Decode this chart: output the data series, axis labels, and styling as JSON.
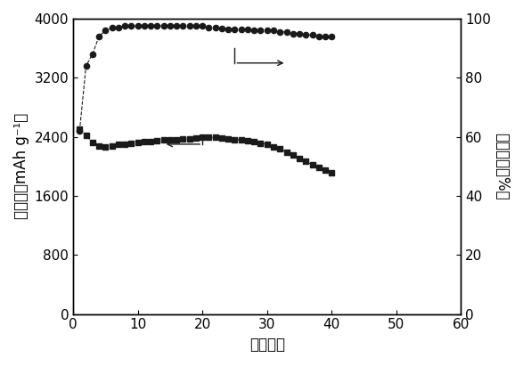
{
  "xlabel": "循环次数",
  "ylabel_left": "比容量（mAh g⁻¹）",
  "ylabel_right": "库伦效率（%）",
  "xlim": [
    0,
    60
  ],
  "ylim_left": [
    0,
    4000
  ],
  "ylim_right": [
    0,
    100
  ],
  "xticks": [
    0,
    10,
    20,
    30,
    40,
    50,
    60
  ],
  "yticks_left": [
    0,
    800,
    1600,
    2400,
    3200,
    4000
  ],
  "yticks_right": [
    0,
    20,
    40,
    60,
    80,
    100
  ],
  "capacity_x": [
    1,
    2,
    3,
    4,
    5,
    6,
    7,
    8,
    9,
    10,
    11,
    12,
    13,
    14,
    15,
    16,
    17,
    18,
    19,
    20,
    21,
    22,
    23,
    24,
    25,
    26,
    27,
    28,
    29,
    30,
    31,
    32,
    33,
    34,
    35,
    36,
    37,
    38,
    39,
    40
  ],
  "capacity_y": [
    2500,
    2420,
    2320,
    2280,
    2265,
    2280,
    2295,
    2305,
    2315,
    2325,
    2330,
    2340,
    2345,
    2355,
    2360,
    2365,
    2370,
    2375,
    2385,
    2400,
    2395,
    2390,
    2385,
    2375,
    2365,
    2355,
    2345,
    2330,
    2315,
    2295,
    2265,
    2235,
    2195,
    2160,
    2110,
    2065,
    2020,
    1985,
    1945,
    1910
  ],
  "efficiency_x": [
    1,
    2,
    3,
    4,
    5,
    6,
    7,
    8,
    9,
    10,
    11,
    12,
    13,
    14,
    15,
    16,
    17,
    18,
    19,
    20,
    21,
    22,
    23,
    24,
    25,
    26,
    27,
    28,
    29,
    30,
    31,
    32,
    33,
    34,
    35,
    36,
    37,
    38,
    39,
    40
  ],
  "efficiency_y": [
    62,
    84,
    88,
    94,
    96,
    97,
    97,
    97.5,
    97.5,
    97.5,
    97.5,
    97.5,
    97.5,
    97.5,
    97.5,
    97.5,
    97.5,
    97.5,
    97.5,
    97.5,
    97,
    97,
    96.8,
    96.5,
    96.5,
    96.5,
    96.5,
    96,
    96,
    96,
    96,
    95.5,
    95.5,
    95,
    95,
    94.5,
    94.5,
    94,
    94,
    94
  ],
  "color": "#1a1a1a",
  "linewidth": 0.8,
  "markersize_cap": 4.5,
  "markersize_eff": 4.5,
  "font_size": 12,
  "tick_font_size": 11,
  "ann_cap_x1": 20,
  "ann_cap_x2": 14,
  "ann_cap_y": 2300,
  "ann_eff_x1": 25,
  "ann_eff_x2": 33,
  "ann_eff_y": 85
}
